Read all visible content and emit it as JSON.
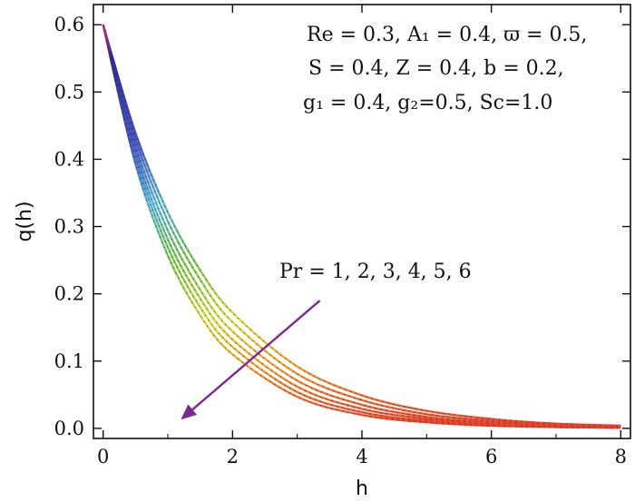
{
  "chart_data": {
    "type": "line",
    "xlabel": "h",
    "ylabel": "q(h)",
    "xlim": [
      -0.15,
      8.15
    ],
    "ylim": [
      -0.015,
      0.63
    ],
    "x_ticks": [
      0,
      2,
      4,
      6,
      8
    ],
    "x_tick_labels": [
      "0",
      "2",
      "4",
      "6",
      "8"
    ],
    "y_ticks": [
      0.0,
      0.1,
      0.2,
      0.3,
      0.4,
      0.5,
      0.6
    ],
    "y_tick_labels": [
      "0.0",
      "0.1",
      "0.2",
      "0.3",
      "0.4",
      "0.5",
      "0.6"
    ],
    "grid": false,
    "colormap": [
      "#2b2f8a",
      "#4a56c0",
      "#5ab4d8",
      "#7cc84a",
      "#d8dc3a",
      "#f2a03a",
      "#e8402e"
    ],
    "series": [
      {
        "param": 1,
        "x": [
          0,
          0.5,
          1,
          1.5,
          2,
          3,
          4,
          5,
          6,
          7,
          8
        ],
        "y": [
          0.6,
          0.439,
          0.321,
          0.235,
          0.172,
          0.092,
          0.049,
          0.026,
          0.014,
          0.007,
          0.004
        ]
      },
      {
        "param": 2,
        "x": [
          0,
          0.5,
          1,
          1.5,
          2,
          3,
          4,
          5,
          6,
          7,
          8
        ],
        "y": [
          0.6,
          0.43,
          0.308,
          0.221,
          0.158,
          0.081,
          0.042,
          0.021,
          0.011,
          0.006,
          0.003
        ]
      },
      {
        "param": 3,
        "x": [
          0,
          0.5,
          1,
          1.5,
          2,
          3,
          4,
          5,
          6,
          7,
          8
        ],
        "y": [
          0.6,
          0.42,
          0.294,
          0.206,
          0.144,
          0.071,
          0.035,
          0.017,
          0.008,
          0.004,
          0.002
        ]
      },
      {
        "param": 4,
        "x": [
          0,
          0.5,
          1,
          1.5,
          2,
          3,
          4,
          5,
          6,
          7,
          8
        ],
        "y": [
          0.6,
          0.411,
          0.281,
          0.193,
          0.132,
          0.062,
          0.029,
          0.014,
          0.006,
          0.003,
          0.001
        ]
      },
      {
        "param": 5,
        "x": [
          0,
          0.5,
          1,
          1.5,
          2,
          3,
          4,
          5,
          6,
          7,
          8
        ],
        "y": [
          0.6,
          0.402,
          0.269,
          0.18,
          0.121,
          0.054,
          0.024,
          0.011,
          0.005,
          0.002,
          0.001
        ]
      },
      {
        "param": 6,
        "x": [
          0,
          0.5,
          1,
          1.5,
          2,
          3,
          4,
          5,
          6,
          7,
          8
        ],
        "y": [
          0.6,
          0.393,
          0.257,
          0.168,
          0.11,
          0.047,
          0.02,
          0.009,
          0.004,
          0.002,
          0.001
        ]
      }
    ],
    "annotation_params": [
      "Re = 0.3, A₁ = 0.4, ϖ = 0.5,",
      "S = 0.4, Z = 0.4, b = 0.2,",
      "g₁ = 0.4, g₂=0.5, Sc=1.0"
    ],
    "annotation_arrow_label": "Pr = 1, 2, 3, 4, 5, 6",
    "arrow": {
      "from": [
        3.35,
        0.19
      ],
      "to": [
        1.2,
        0.013
      ],
      "color": "#7b2a8c"
    }
  }
}
